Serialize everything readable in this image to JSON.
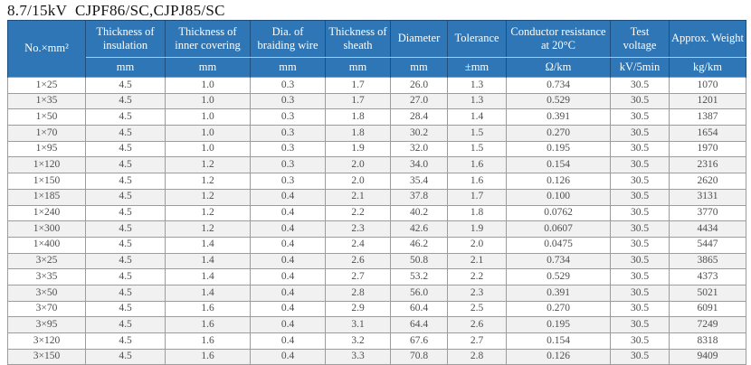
{
  "title": "8.7/15kV  CJPF86/SC,CJPJ85/SC",
  "colors": {
    "header_bg": "#2e76b5",
    "header_border_dark": "#1d4e7e",
    "header_separator_light": "#aec9e4",
    "header_text": "#ffffff",
    "row_stripe": "#f1f1f1",
    "grid_border": "#9c9c9c",
    "body_text": "#4e4e4e"
  },
  "table": {
    "columns": [
      {
        "label": "No.×mm²",
        "unit": ""
      },
      {
        "label": "Thickness of insulation",
        "unit": "mm"
      },
      {
        "label": "Thickness of inner covering",
        "unit": "mm"
      },
      {
        "label": "Dia. of braiding wire",
        "unit": "mm"
      },
      {
        "label": "Thickness of sheath",
        "unit": "mm"
      },
      {
        "label": "Diameter",
        "unit": "mm"
      },
      {
        "label": "Tolerance",
        "unit": "±mm"
      },
      {
        "label": "Conductor resistance at 20°C",
        "unit": "Ω/km"
      },
      {
        "label": "Test voltage",
        "unit": "kV/5min"
      },
      {
        "label": "Approx. Weight",
        "unit": "kg/km"
      }
    ],
    "rows": [
      [
        "1×25",
        "4.5",
        "1.0",
        "0.3",
        "1.7",
        "26.0",
        "1.3",
        "0.734",
        "30.5",
        "1070"
      ],
      [
        "1×35",
        "4.5",
        "1.0",
        "0.3",
        "1.7",
        "27.0",
        "1.3",
        "0.529",
        "30.5",
        "1201"
      ],
      [
        "1×50",
        "4.5",
        "1.0",
        "0.3",
        "1.8",
        "28.4",
        "1.4",
        "0.391",
        "30.5",
        "1387"
      ],
      [
        "1×70",
        "4.5",
        "1.0",
        "0.3",
        "1.8",
        "30.2",
        "1.5",
        "0.270",
        "30.5",
        "1654"
      ],
      [
        "1×95",
        "4.5",
        "1.0",
        "0.3",
        "1.9",
        "32.0",
        "1.5",
        "0.195",
        "30.5",
        "1970"
      ],
      [
        "1×120",
        "4.5",
        "1.2",
        "0.3",
        "2.0",
        "34.0",
        "1.6",
        "0.154",
        "30.5",
        "2316"
      ],
      [
        "1×150",
        "4.5",
        "1.2",
        "0.3",
        "2.0",
        "35.4",
        "1.6",
        "0.126",
        "30.5",
        "2620"
      ],
      [
        "1×185",
        "4.5",
        "1.2",
        "0.4",
        "2.1",
        "37.8",
        "1.7",
        "0.100",
        "30.5",
        "3131"
      ],
      [
        "1×240",
        "4.5",
        "1.2",
        "0.4",
        "2.2",
        "40.2",
        "1.8",
        "0.0762",
        "30.5",
        "3770"
      ],
      [
        "1×300",
        "4.5",
        "1.2",
        "0.4",
        "2.3",
        "42.6",
        "1.9",
        "0.0607",
        "30.5",
        "4434"
      ],
      [
        "1×400",
        "4.5",
        "1.4",
        "0.4",
        "2.4",
        "46.2",
        "2.0",
        "0.0475",
        "30.5",
        "5447"
      ],
      [
        "3×25",
        "4.5",
        "1.4",
        "0.4",
        "2.6",
        "50.8",
        "2.1",
        "0.734",
        "30.5",
        "3865"
      ],
      [
        "3×35",
        "4.5",
        "1.4",
        "0.4",
        "2.7",
        "53.2",
        "2.2",
        "0.529",
        "30.5",
        "4373"
      ],
      [
        "3×50",
        "4.5",
        "1.4",
        "0.4",
        "2.8",
        "56.0",
        "2.3",
        "0.391",
        "30.5",
        "5021"
      ],
      [
        "3×70",
        "4.5",
        "1.6",
        "0.4",
        "2.9",
        "60.4",
        "2.5",
        "0.270",
        "30.5",
        "6091"
      ],
      [
        "3×95",
        "4.5",
        "1.6",
        "0.4",
        "3.1",
        "64.4",
        "2.6",
        "0.195",
        "30.5",
        "7249"
      ],
      [
        "3×120",
        "4.5",
        "1.6",
        "0.4",
        "3.2",
        "67.6",
        "2.7",
        "0.154",
        "30.5",
        "8318"
      ],
      [
        "3×150",
        "4.5",
        "1.6",
        "0.4",
        "3.3",
        "70.8",
        "2.8",
        "0.126",
        "30.5",
        "9409"
      ]
    ]
  }
}
